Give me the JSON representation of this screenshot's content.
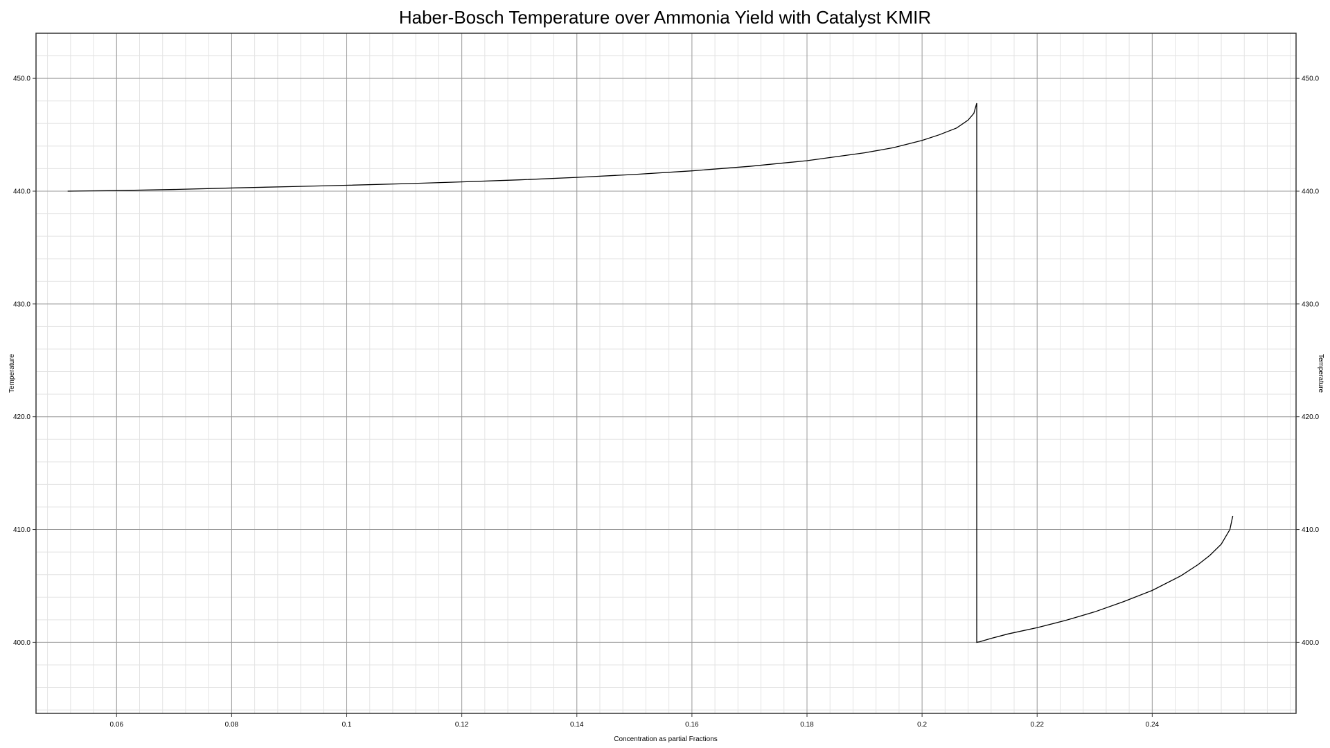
{
  "chart_data": {
    "type": "line",
    "title": "Haber-Bosch Temperature over Ammonia Yield with Catalyst KMIR",
    "xlabel": "Concentration as partial Fractions",
    "ylabel_left": "Temperature",
    "ylabel_right": "Temperature",
    "xlim": [
      0.046,
      0.265
    ],
    "ylim": [
      393.7,
      454.0
    ],
    "x_ticks": [
      0.06,
      0.08,
      0.1,
      0.12,
      0.14,
      0.16,
      0.18,
      0.2,
      0.22,
      0.24
    ],
    "x_tick_labels": [
      "0.06",
      "0.08",
      "0.1",
      "0.12",
      "0.14",
      "0.16",
      "0.18",
      "0.2",
      "0.22",
      "0.24"
    ],
    "y_ticks": [
      400,
      410,
      420,
      430,
      440,
      450
    ],
    "y_tick_labels": [
      "400.0",
      "410.0",
      "420.0",
      "430.0",
      "440.0",
      "450.0"
    ],
    "grid": true,
    "minor_grid": true,
    "line_color": "#000000",
    "series": [
      {
        "x": [
          0.0515,
          0.06,
          0.07,
          0.08,
          0.09,
          0.1,
          0.11,
          0.12,
          0.13,
          0.14,
          0.15,
          0.16,
          0.17,
          0.18,
          0.19,
          0.195,
          0.2,
          0.203,
          0.206,
          0.208,
          0.209,
          0.2095,
          0.2095,
          0.2095,
          0.21,
          0.212,
          0.215,
          0.22,
          0.225,
          0.23,
          0.235,
          0.24,
          0.245,
          0.248,
          0.25,
          0.252,
          0.2535,
          0.254
        ],
        "y": [
          440.0,
          440.05,
          440.15,
          440.28,
          440.4,
          440.52,
          440.66,
          440.82,
          441.0,
          441.22,
          441.48,
          441.8,
          442.2,
          442.7,
          443.4,
          443.85,
          444.5,
          445.0,
          445.6,
          446.3,
          446.9,
          447.8,
          445.8,
          400.0,
          400.05,
          400.35,
          400.75,
          401.3,
          401.95,
          402.7,
          403.6,
          404.6,
          405.9,
          406.9,
          407.7,
          408.7,
          410.0,
          411.2
        ]
      }
    ]
  }
}
